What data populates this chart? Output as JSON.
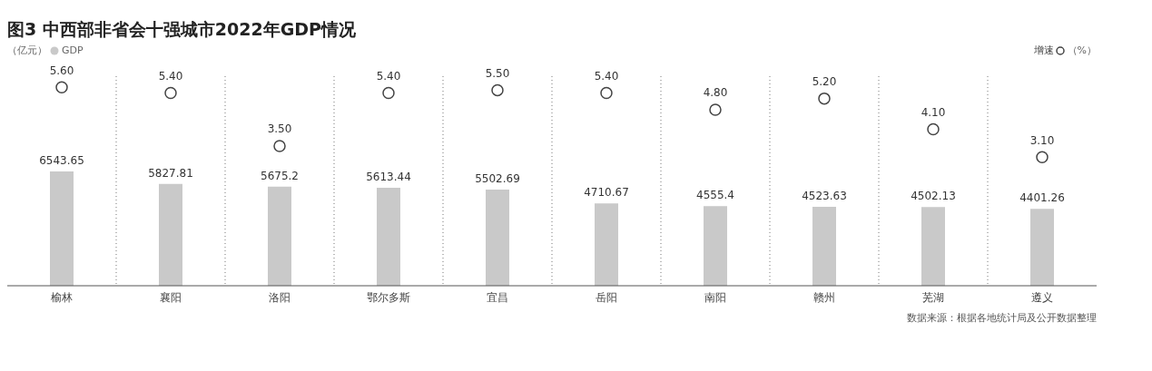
{
  "chart_data": {
    "type": "bar",
    "title": "图3 中西部非省会十强城市2022年GDP情况",
    "categories": [
      "榆林",
      "襄阳",
      "洛阳",
      "鄂尔多斯",
      "宜昌",
      "岳阳",
      "南阳",
      "赣州",
      "芜湖",
      "遵义"
    ],
    "series": [
      {
        "name": "GDP",
        "color": "#c9c9c9",
        "values": [
          6543.65,
          5827.81,
          5675.2,
          5613.44,
          5502.69,
          4710.67,
          4555.4,
          4523.63,
          4502.13,
          4401.26
        ]
      },
      {
        "name": "增速",
        "type": "scatter",
        "axis": "y2",
        "marker": "circle",
        "color": "#444444",
        "values": [
          5.6,
          5.4,
          3.5,
          5.4,
          5.5,
          5.4,
          4.8,
          5.2,
          4.1,
          3.1
        ],
        "value_labels": [
          "5.60",
          "5.40",
          "3.50",
          "5.40",
          "5.50",
          "5.40",
          "4.80",
          "5.20",
          "4.10",
          "3.10"
        ]
      }
    ],
    "ylabel": "（亿元）",
    "y2label": "（%）",
    "ylim": [
      0,
      12000
    ],
    "y2lim": [
      -1.5,
      6
    ],
    "tick_labels": "x",
    "data_labels": true,
    "grid": "x",
    "legend": "top",
    "annotations": [
      "数据来源：根据各地统计局及公开数据整理"
    ]
  }
}
